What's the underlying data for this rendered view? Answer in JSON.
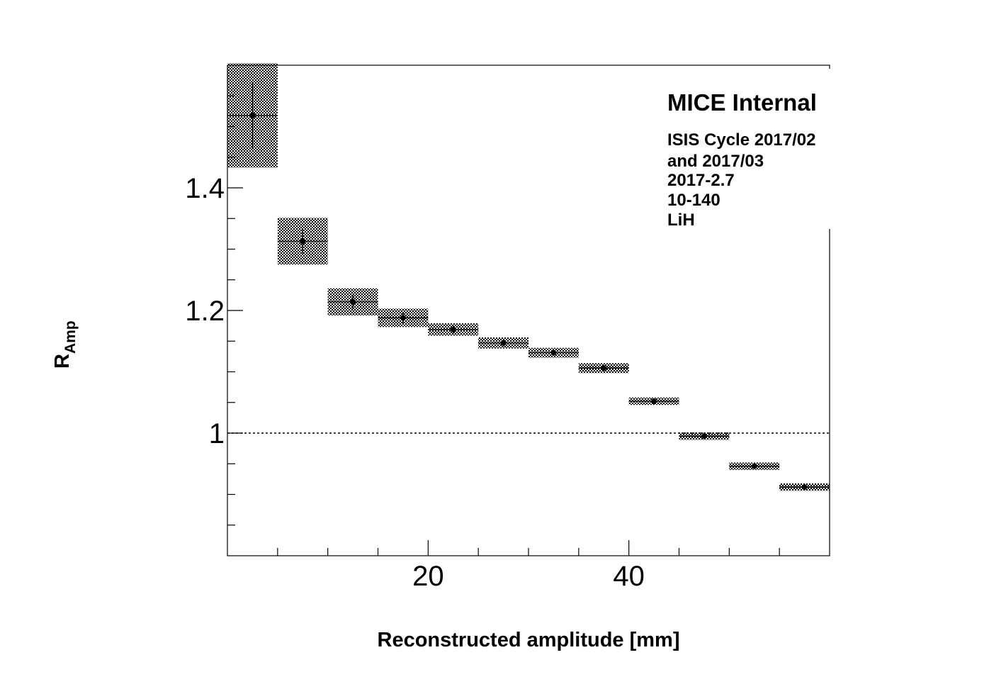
{
  "chart_data": {
    "type": "scatter",
    "xlabel": "Reconstructed amplitude [mm]",
    "ylabel": {
      "main": "R",
      "sub": "Amp"
    },
    "xlim": [
      0,
      60
    ],
    "ylim": [
      0.8,
      1.6
    ],
    "x_ticks": [
      20,
      40
    ],
    "y_ticks": [
      1.0,
      1.2,
      1.4
    ],
    "x_tick_labels": [
      "20",
      "40"
    ],
    "y_tick_labels": [
      "1",
      "1.2",
      "1.4"
    ],
    "reference_line": {
      "y": 1.0,
      "style": "dotted"
    },
    "annotation": {
      "title": "MICE Internal",
      "lines": [
        "ISIS Cycle 2017/02",
        "and 2017/03",
        "2017-2.7",
        "10-140",
        "LiH"
      ]
    },
    "bin_width": 5,
    "points": [
      {
        "x": 2.5,
        "y": 1.518,
        "stat_err": 0.055,
        "sys_err": 0.085
      },
      {
        "x": 7.5,
        "y": 1.313,
        "stat_err": 0.02,
        "sys_err": 0.038
      },
      {
        "x": 12.5,
        "y": 1.214,
        "stat_err": 0.012,
        "sys_err": 0.022
      },
      {
        "x": 17.5,
        "y": 1.188,
        "stat_err": 0.009,
        "sys_err": 0.015
      },
      {
        "x": 22.5,
        "y": 1.169,
        "stat_err": 0.007,
        "sys_err": 0.01
      },
      {
        "x": 27.5,
        "y": 1.147,
        "stat_err": 0.006,
        "sys_err": 0.009
      },
      {
        "x": 32.5,
        "y": 1.131,
        "stat_err": 0.005,
        "sys_err": 0.008
      },
      {
        "x": 37.5,
        "y": 1.106,
        "stat_err": 0.005,
        "sys_err": 0.008
      },
      {
        "x": 42.5,
        "y": 1.052,
        "stat_err": 0.004,
        "sys_err": 0.006
      },
      {
        "x": 47.5,
        "y": 0.995,
        "stat_err": 0.004,
        "sys_err": 0.006
      },
      {
        "x": 52.5,
        "y": 0.946,
        "stat_err": 0.003,
        "sys_err": 0.006
      },
      {
        "x": 57.5,
        "y": 0.912,
        "stat_err": 0.003,
        "sys_err": 0.006
      }
    ],
    "colors": {
      "frame": "#000000",
      "marker": "#000000",
      "band": "#000000"
    },
    "grid": false,
    "legend": "none"
  }
}
